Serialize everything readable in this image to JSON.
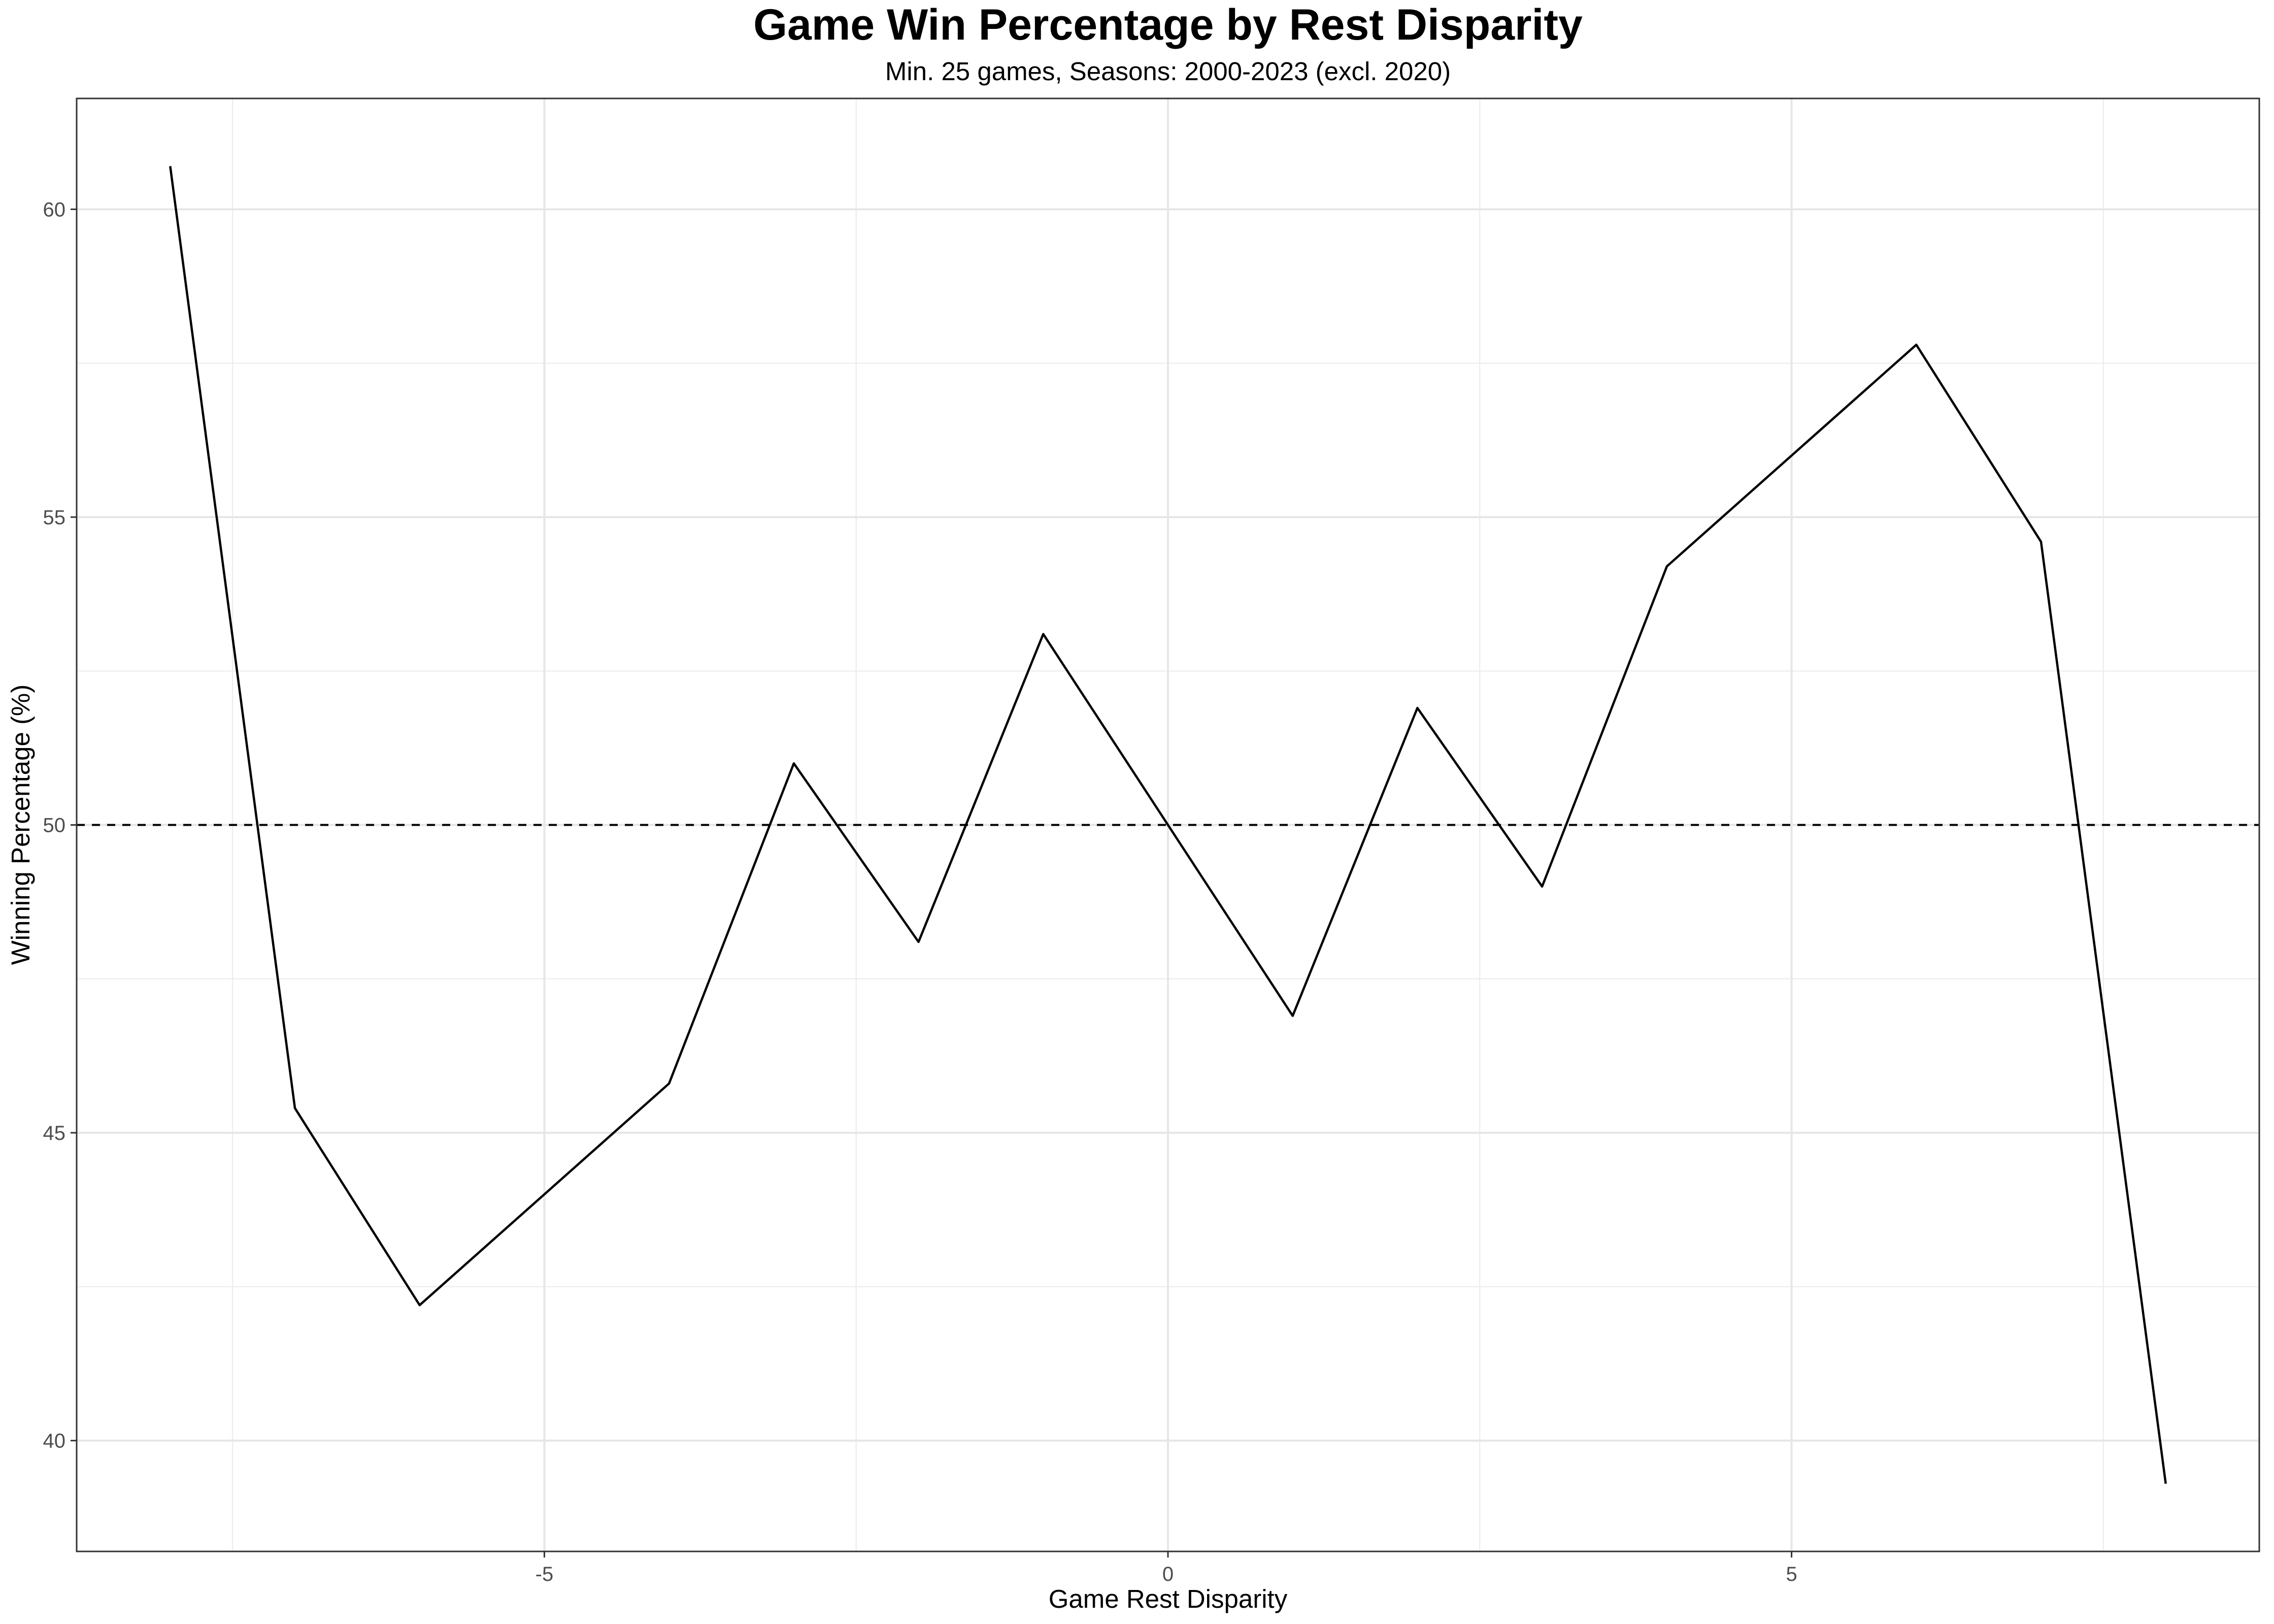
{
  "chart_data": {
    "type": "line",
    "title": "Game Win Percentage by Rest Disparity",
    "subtitle": "Min. 25 games, Seasons: 2000-2023 (excl. 2020)",
    "xlabel": "Game Rest Disparity",
    "ylabel": "Winning Percentage (%)",
    "x": [
      -8,
      -7,
      -6,
      -4,
      -3,
      -2,
      -1,
      0,
      1,
      2,
      3,
      4,
      6,
      7,
      8
    ],
    "series": [
      {
        "values": [
          60.7,
          45.4,
          42.2,
          45.8,
          51.0,
          48.1,
          53.1,
          50.0,
          46.9,
          51.9,
          49.0,
          54.2,
          57.8,
          54.6,
          39.3
        ],
        "color": "#000000"
      }
    ],
    "reference_line": {
      "y": 50,
      "style": "dashed",
      "color": "#000000"
    },
    "xlim": [
      -8.75,
      8.75
    ],
    "ylim": [
      38.2,
      61.8
    ],
    "x_ticks": [
      -5,
      0,
      5
    ],
    "x_tick_labels": [
      "-5",
      "0",
      "5"
    ],
    "y_ticks": [
      40,
      45,
      50,
      55,
      60
    ],
    "y_tick_labels": [
      "40",
      "45",
      "50",
      "55",
      "60"
    ],
    "grid": true,
    "legend": "none"
  }
}
